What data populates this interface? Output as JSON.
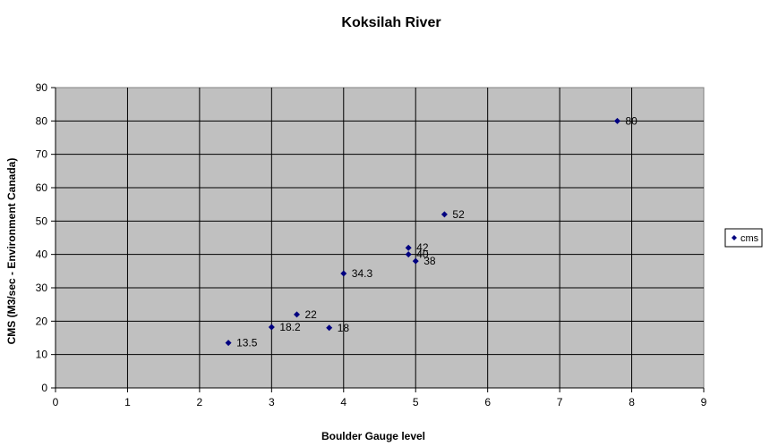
{
  "chart_data": {
    "type": "scatter",
    "title": "Koksilah River",
    "xlabel": "Boulder Gauge level",
    "ylabel": "CMS (M3/sec - Environment Canada)",
    "xlim": [
      0,
      9
    ],
    "ylim": [
      0,
      90
    ],
    "xticks": [
      0,
      1,
      2,
      3,
      4,
      5,
      6,
      7,
      8,
      9
    ],
    "yticks": [
      0,
      10,
      20,
      30,
      40,
      50,
      60,
      70,
      80,
      90
    ],
    "grid": true,
    "legend_position": "right",
    "plot_background": "#c0c0c0",
    "marker_color": "#000080",
    "series": [
      {
        "name": "cms",
        "points": [
          {
            "x": 2.4,
            "y": 13.5,
            "label": "13.5"
          },
          {
            "x": 3.0,
            "y": 18.2,
            "label": "18.2"
          },
          {
            "x": 3.35,
            "y": 22,
            "label": "22"
          },
          {
            "x": 3.8,
            "y": 18,
            "label": "18"
          },
          {
            "x": 4.0,
            "y": 34.3,
            "label": "34.3"
          },
          {
            "x": 4.9,
            "y": 42,
            "label": "42"
          },
          {
            "x": 4.9,
            "y": 40,
            "label": "40"
          },
          {
            "x": 5.0,
            "y": 38,
            "label": "38"
          },
          {
            "x": 5.4,
            "y": 52,
            "label": "52"
          },
          {
            "x": 7.8,
            "y": 80,
            "label": "80"
          }
        ]
      }
    ]
  }
}
